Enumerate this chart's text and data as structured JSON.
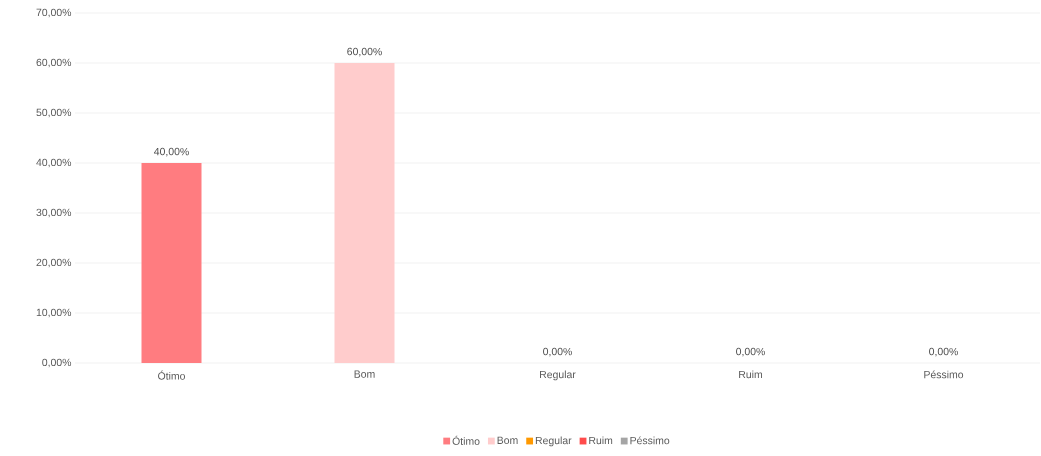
{
  "chart_data": {
    "type": "bar",
    "categories": [
      "Ótimo",
      "Bom",
      "Regular",
      "Ruim",
      "Péssimo"
    ],
    "series": [
      {
        "name": "Ótimo",
        "color": "#ff7c80",
        "values": [
          40,
          null,
          null,
          null,
          null
        ],
        "value_labels": [
          "40,00%",
          null,
          null,
          null,
          null
        ]
      },
      {
        "name": "Bom",
        "color": "#ffcccc",
        "values": [
          null,
          60,
          null,
          null,
          null
        ],
        "value_labels": [
          null,
          "60,00%",
          null,
          null,
          null
        ]
      },
      {
        "name": "Regular",
        "color": "#ff9900",
        "values": [
          null,
          null,
          0,
          null,
          null
        ],
        "value_labels": [
          null,
          null,
          "0,00%",
          null,
          null
        ]
      },
      {
        "name": "Ruim",
        "color": "#ff4b4b",
        "values": [
          null,
          null,
          null,
          0,
          null
        ],
        "value_labels": [
          null,
          null,
          null,
          "0,00%",
          null
        ]
      },
      {
        "name": "Péssimo",
        "color": "#a5a5a5",
        "values": [
          null,
          null,
          null,
          null,
          0
        ],
        "value_labels": [
          null,
          null,
          null,
          null,
          "0,00%"
        ]
      }
    ],
    "ylim": [
      0,
      70
    ],
    "yticks": [
      {
        "value": 0,
        "label": "0,00%"
      },
      {
        "value": 10,
        "label": "10,00%"
      },
      {
        "value": 20,
        "label": "20,00%"
      },
      {
        "value": 30,
        "label": "30,00%"
      },
      {
        "value": 40,
        "label": "40,00%"
      },
      {
        "value": 50,
        "label": "50,00%"
      },
      {
        "value": 60,
        "label": "60,00%"
      },
      {
        "value": 70,
        "label": "70,00%"
      }
    ],
    "grid": "y",
    "legend": "bottom"
  }
}
